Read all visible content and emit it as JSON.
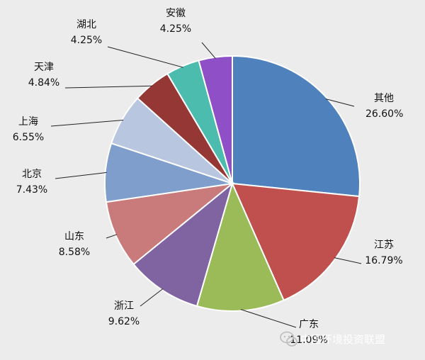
{
  "chart_data": {
    "type": "pie",
    "title": "",
    "slices": [
      {
        "label": "其他",
        "value": 26.6,
        "pct_label": "26.60%",
        "color": "#4f81bd"
      },
      {
        "label": "江苏",
        "value": 16.79,
        "pct_label": "16.79%",
        "color": "#c0504d"
      },
      {
        "label": "广东",
        "value": 11.09,
        "pct_label": "11.09%",
        "color": "#9bbb59"
      },
      {
        "label": "浙江",
        "value": 9.62,
        "pct_label": "9.62%",
        "color": "#8064a2"
      },
      {
        "label": "山东",
        "value": 8.58,
        "pct_label": "8.58%",
        "color": "#c97b7b"
      },
      {
        "label": "北京",
        "value": 7.43,
        "pct_label": "7.43%",
        "color": "#7f9ecb"
      },
      {
        "label": "上海",
        "value": 6.55,
        "pct_label": "6.55%",
        "color": "#b8c6e0"
      },
      {
        "label": "天津",
        "value": 4.84,
        "pct_label": "4.84%",
        "color": "#953735"
      },
      {
        "label": "湖北",
        "value": 4.25,
        "pct_label": "4.25%",
        "color": "#4bbcad"
      },
      {
        "label": "安徽",
        "value": 4.25,
        "pct_label": "4.25%",
        "color": "#8e4fc7"
      }
    ],
    "legend": "none"
  },
  "watermark": {
    "text": "中国环境投资联盟",
    "icon": "wechat-icon"
  }
}
